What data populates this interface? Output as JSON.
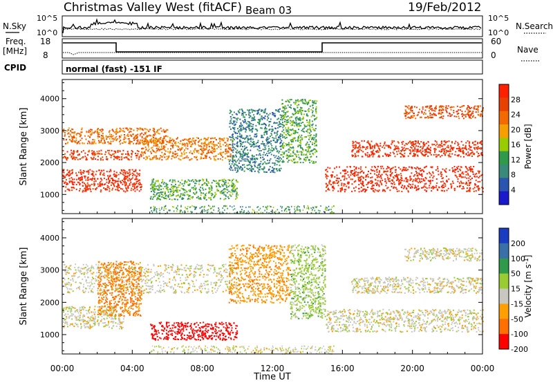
{
  "header": {
    "station": "Christmas Valley West (fitACF)",
    "beam": "Beam 03",
    "date": "19/Feb/2012"
  },
  "top_panels": {
    "nsky_label": "N.Sky",
    "nsky_ticks": [
      "10^5",
      "10^0"
    ],
    "nsearch_label": "N.Search",
    "nsearch_ticks": [
      "10^5",
      "10^0"
    ],
    "freq_label": "Freq.",
    "freq_unit": "[MHz]",
    "freq_ticks": [
      "18",
      "8"
    ],
    "nave_label": "Nave",
    "nave_ticks": [
      "60",
      "0"
    ],
    "cpid_label": "CPID",
    "cpid_text": "normal (fast) -151 IF"
  },
  "colors": {
    "power_scale": [
      "#1a1acc",
      "#2a55b0",
      "#3a8a7a",
      "#2e9a4a",
      "#99cc00",
      "#f5a000",
      "#f26a00",
      "#e84000",
      "#ff2000"
    ],
    "velocity_scale": [
      "#1a3cc0",
      "#3a70a8",
      "#2e9a4a",
      "#99cc33",
      "#c8c8c0",
      "#ffa000",
      "#ff7000",
      "#ff0000"
    ]
  },
  "chart_data": [
    {
      "type": "heatmap",
      "name": "power",
      "ylabel": "Slant Range [km]",
      "yticks": [
        1000,
        2000,
        3000,
        4000
      ],
      "ylim": [
        400,
        4600
      ],
      "xlim": [
        0,
        24
      ],
      "colorbar_label": "Power [dB]",
      "colorbar_ticks": [
        "4",
        "8",
        "12",
        "16",
        "20",
        "24",
        "28"
      ],
      "colorbar_range": [
        0,
        30
      ],
      "echo_regions": [
        {
          "t0": 0.0,
          "t1": 4.5,
          "r0": 1100,
          "r1": 1800,
          "value": 28
        },
        {
          "t0": 0.0,
          "t1": 4.5,
          "r0": 2100,
          "r1": 2400,
          "value": 26
        },
        {
          "t0": 0.0,
          "t1": 6.0,
          "r0": 2600,
          "r1": 3100,
          "value": 22
        },
        {
          "t0": 4.5,
          "t1": 9.7,
          "r0": 2100,
          "r1": 2800,
          "value": 21
        },
        {
          "t0": 5.0,
          "t1": 10.0,
          "r0": 850,
          "r1": 1500,
          "value": 12
        },
        {
          "t0": 9.5,
          "t1": 12.5,
          "r0": 1700,
          "r1": 3700,
          "value": 8
        },
        {
          "t0": 12.5,
          "t1": 14.5,
          "r0": 2000,
          "r1": 4000,
          "value": 12
        },
        {
          "t0": 15.0,
          "t1": 24.0,
          "r0": 1100,
          "r1": 1900,
          "value": 29
        },
        {
          "t0": 16.5,
          "t1": 24.0,
          "r0": 2200,
          "r1": 2700,
          "value": 28
        },
        {
          "t0": 19.5,
          "t1": 24.0,
          "r0": 3400,
          "r1": 3800,
          "value": 24
        }
      ]
    },
    {
      "type": "heatmap",
      "name": "velocity",
      "ylabel": "Slant Range [km]",
      "yticks": [
        1000,
        2000,
        3000,
        4000
      ],
      "ylim": [
        400,
        4600
      ],
      "xlim": [
        0,
        24
      ],
      "xlabel": "Time UT",
      "xticks": [
        "00:00",
        "04:00",
        "08:00",
        "12:00",
        "16:00",
        "20:00",
        "00:00"
      ],
      "colorbar_label": "Velocity [m s",
      "colorbar_unit_sup": "-1",
      "colorbar_ticks": [
        "200",
        "100",
        "50",
        "15",
        "-15",
        "-50",
        "-100",
        "-200"
      ],
      "echo_regions": [
        {
          "t0": 0.0,
          "t1": 3.5,
          "r0": 1200,
          "r1": 1900,
          "value": 0
        },
        {
          "t0": 0.0,
          "t1": 10.0,
          "r0": 2300,
          "r1": 3200,
          "value": 0
        },
        {
          "t0": 2.0,
          "t1": 4.5,
          "r0": 1600,
          "r1": 3300,
          "value": -60
        },
        {
          "t0": 5.0,
          "t1": 10.0,
          "r0": 850,
          "r1": 1400,
          "value": -180
        },
        {
          "t0": 9.5,
          "t1": 13.0,
          "r0": 2000,
          "r1": 3800,
          "value": -40
        },
        {
          "t0": 13.0,
          "t1": 15.0,
          "r0": 1500,
          "r1": 3800,
          "value": 30
        },
        {
          "t0": 15.0,
          "t1": 24.0,
          "r0": 1100,
          "r1": 1800,
          "value": 0
        },
        {
          "t0": 16.5,
          "t1": 24.0,
          "r0": 2300,
          "r1": 2800,
          "value": 0
        },
        {
          "t0": 19.5,
          "t1": 24.0,
          "r0": 3300,
          "r1": 3700,
          "value": 0
        }
      ]
    }
  ]
}
